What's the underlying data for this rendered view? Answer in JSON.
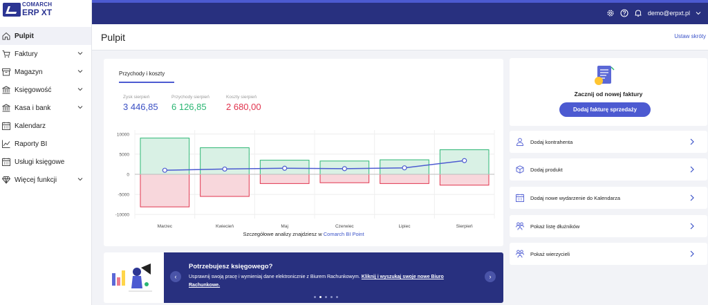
{
  "app": {
    "brand_top": "COMARCH",
    "brand_bottom": "ERP XT"
  },
  "topbar": {
    "user": "demo@erpxt.pl"
  },
  "header": {
    "title": "Pulpit",
    "shortcuts": "Ustaw skróty"
  },
  "sidebar": {
    "items": [
      {
        "label": "Pulpit",
        "icon": "home-icon",
        "active": true,
        "chevron": false
      },
      {
        "label": "Faktury",
        "icon": "cart-icon",
        "chevron": true
      },
      {
        "label": "Magazyn",
        "icon": "box-icon",
        "chevron": true
      },
      {
        "label": "Księgowość",
        "icon": "bank-icon",
        "chevron": true
      },
      {
        "label": "Kasa i bank",
        "icon": "bank-icon",
        "chevron": true
      },
      {
        "label": "Kalendarz",
        "icon": "calendar-icon",
        "chevron": false
      },
      {
        "label": "Raporty BI",
        "icon": "chart-icon",
        "chevron": false
      },
      {
        "label": "Usługi księgowe",
        "icon": "calendar-icon",
        "chevron": false
      },
      {
        "label": "Więcej funkcji",
        "icon": "diamond-icon",
        "chevron": true
      }
    ]
  },
  "dashboard": {
    "tab": "Przychody i koszty",
    "kpis": [
      {
        "label": "Zysk sierpień",
        "value": "3 446,85",
        "color": "#3a4fc4"
      },
      {
        "label": "Przychody sierpień",
        "value": "6 126,85",
        "color": "#2bb673"
      },
      {
        "label": "Koszty sierpień",
        "value": "2 680,00",
        "color": "#e0334d"
      }
    ],
    "footnote": "Szczegółowe analizy znajdziesz w",
    "footnote_link": "Comarch BI Point"
  },
  "chart_data": {
    "type": "bar",
    "categories": [
      "Marzec",
      "Kwiecień",
      "Maj",
      "Czerwiec",
      "Lipiec",
      "Sierpień"
    ],
    "y_ticks": [
      "10000",
      "5000",
      "0",
      "-5000",
      "-10000"
    ],
    "ylim": [
      -11000,
      11000
    ],
    "series": [
      {
        "values": [
          9000,
          6600,
          3500,
          3300,
          3600,
          6100
        ],
        "color": "#2bb673"
      },
      {
        "values": [
          -8100,
          -5500,
          -2300,
          -2100,
          -2300,
          -2700
        ],
        "color": "#e0334d"
      },
      {
        "type": "line",
        "values": [
          1000,
          1300,
          1500,
          1400,
          1600,
          3400
        ],
        "color": "#4c5ad1"
      }
    ],
    "grid": true
  },
  "banner": {
    "title": "Potrzebujesz księgowego?",
    "text": "Usprawnij swoją pracę i wymieniaj dane elektronicznie z Biurem Rachunkowym.",
    "link": "Kliknij i wyszukaj swoje nowe Biuro Rachunkowe.",
    "slides": 5,
    "active_slide": 1
  },
  "new_invoice": {
    "title": "Zacznij od nowej faktury",
    "button": "Dodaj fakturę sprzedaży"
  },
  "actions": [
    {
      "label": "Dodaj kontrahenta",
      "icon": "person-icon"
    },
    {
      "label": "Dodaj produkt",
      "icon": "box-icon"
    },
    {
      "label": "Dodaj nowe wydarzenie do Kalendarza",
      "icon": "calendar-icon"
    },
    {
      "label": "Pokaż listę dłużników",
      "icon": "people-icon"
    },
    {
      "label": "Pokaż wierzycieli",
      "icon": "people-icon"
    }
  ]
}
